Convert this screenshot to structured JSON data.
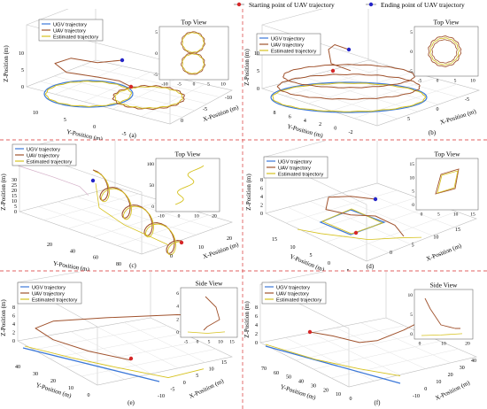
{
  "figure_legend": {
    "start_label": "Starting point of UAV trajectory",
    "end_label": "Ending point of UAV trajectory",
    "start_color": "#d62728",
    "end_color": "#2424c8"
  },
  "colors": {
    "ugv": "#3c78d8",
    "uav": "#a0522d",
    "estimated": "#d6c21e",
    "divider": "#e06060"
  },
  "chart_data": [
    {
      "type": "line",
      "panel_label": "(a)",
      "inset_title": "Top View",
      "legend": [
        "UGV trajectory",
        "UAV trajectory",
        "Estimated trajectory"
      ],
      "zlabel": "Z-Position (m)",
      "xlabel": "X-Position (m)",
      "ylabel": "Y-Position (m)",
      "z_ticks": [
        "0",
        "5",
        "10"
      ],
      "x_ticks": [
        "0",
        "-5",
        "-10"
      ],
      "y_ticks": [
        "10",
        "5",
        "0",
        "-5"
      ],
      "inset_x_ticks": [
        "-10",
        "-5",
        "0",
        "5",
        "10"
      ],
      "inset_y_ticks": [
        "5",
        "0",
        "-5"
      ]
    },
    {
      "type": "line",
      "panel_label": "(b)",
      "inset_title": "Top View",
      "legend": [
        "UGV trajectory",
        "UAV trajectory",
        "Estimated trajectory"
      ],
      "zlabel": "Z-Position (m)",
      "xlabel": "X-Position (m)",
      "ylabel": "Y-Position (m)",
      "z_ticks": [
        "0",
        "5",
        "10"
      ],
      "x_ticks": [
        "5",
        "0",
        "-5"
      ],
      "y_ticks": [
        "8",
        "6",
        "4",
        "2",
        "0",
        "-2"
      ],
      "inset_x_ticks": [
        "-5",
        "0",
        "5",
        "10"
      ],
      "inset_y_ticks": [
        "5",
        "0",
        "-5"
      ]
    },
    {
      "type": "line",
      "panel_label": "(c)",
      "inset_title": "Top View",
      "legend": [
        "UGV trajectory",
        "UAV trajectory",
        "Estimated trajectory"
      ],
      "zlabel": "Z-Position (m)",
      "xlabel": "X-Position (m)",
      "ylabel": "Y-Position (m)",
      "z_ticks": [
        "0",
        "5",
        "10",
        "15",
        "20",
        "25",
        "30"
      ],
      "x_ticks": [
        "0",
        "10",
        "20"
      ],
      "y_ticks": [
        "20",
        "40",
        "60",
        "80"
      ],
      "inset_x_ticks": [
        "-10",
        "0",
        "10",
        "20"
      ],
      "inset_y_ticks": [
        "100",
        "50",
        "0"
      ]
    },
    {
      "type": "line",
      "panel_label": "(d)",
      "inset_title": "Top View",
      "legend": [
        "UGV trajectory",
        "UAV trajectory",
        "Estimated trajectory"
      ],
      "zlabel": "Z-Position (m)",
      "xlabel": "X-Position (m)",
      "ylabel": "Y-Position (m)",
      "z_ticks": [
        "0",
        "2",
        "4",
        "6",
        "8"
      ],
      "x_ticks": [
        "0",
        "5",
        "10",
        "15"
      ],
      "y_ticks": [
        "15",
        "10",
        "5",
        "0",
        "-5"
      ],
      "inset_x_ticks": [
        "0",
        "5",
        "10",
        "15"
      ],
      "inset_y_ticks": [
        "15",
        "10",
        "5",
        "0"
      ]
    },
    {
      "type": "line",
      "panel_label": "(e)",
      "inset_title": "Side View",
      "legend": [
        "UGV trajectory",
        "UAV trajectory",
        "Estimated trajectory"
      ],
      "zlabel": "Z-Position (m)",
      "xlabel": "X-Position (m)",
      "ylabel": "Y-Position (m)",
      "z_ticks": [
        "0",
        "2",
        "4",
        "6",
        "8"
      ],
      "x_ticks": [
        "-10",
        "-5",
        "0",
        "5",
        "10",
        "15"
      ],
      "y_ticks": [
        "40",
        "30",
        "20",
        "10",
        "0"
      ],
      "inset_x_ticks": [
        "-5",
        "0",
        "5",
        "10",
        "15"
      ],
      "inset_y_ticks": [
        "6",
        "4",
        "2",
        "0"
      ]
    },
    {
      "type": "line",
      "panel_label": "(f)",
      "inset_title": "Side View",
      "legend": [
        "UGV trajectory",
        "UAV trajectory",
        "Estimated trajectory"
      ],
      "zlabel": "Z-Position (m)",
      "xlabel": "X-Position (m)",
      "ylabel": "Y-Position (m)",
      "z_ticks": [
        "0",
        "2",
        "4",
        "6",
        "8"
      ],
      "x_ticks": [
        "-10",
        "0",
        "10",
        "20",
        "30",
        "40"
      ],
      "y_ticks": [
        "70",
        "60",
        "50",
        "40",
        "30",
        "20",
        "10",
        "0"
      ],
      "inset_x_ticks": [
        "0",
        "10",
        "20"
      ],
      "inset_y_ticks": [
        "10",
        "5",
        "0"
      ]
    }
  ]
}
